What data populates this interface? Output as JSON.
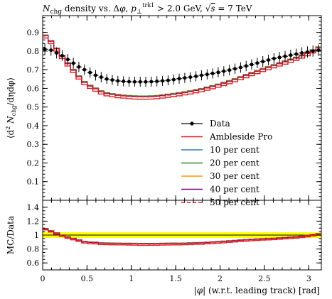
{
  "chart_data": [
    {
      "type": "line",
      "title_parts": {
        "n": "N",
        "chg": "chg",
        "density_vs": " density vs. Δ",
        "phi": "φ",
        "sep": ", ",
        "p": "p",
        "perp": "⊥",
        "trk": "trk1",
        "cut": " > 2.0 GeV, ",
        "sqrt": "√",
        "s": "s",
        "energy": " = 7 TeV"
      },
      "ylabel_parts": {
        "open": "⟨d",
        "two": "2",
        "n": " N",
        "chg": "chg",
        "rest": "/dηdφ⟩"
      },
      "ylim": [
        0,
        0.99
      ],
      "xlim": [
        0,
        3.14159
      ],
      "yticks": [
        "0.1",
        "0.2",
        "0.3",
        "0.4",
        "0.5",
        "0.6",
        "0.7",
        "0.8",
        "0.9"
      ],
      "ytick_values": [
        0.1,
        0.2,
        0.3,
        0.4,
        0.5,
        0.6,
        0.7,
        0.8,
        0.9
      ],
      "legend_position": "lower-right",
      "legend": [
        {
          "label": "Data",
          "color": "#000000",
          "style": "marker"
        },
        {
          "label": "Ambleside Pro",
          "color": "#e41a1c",
          "style": "solid"
        },
        {
          "label": "10 per cent",
          "color": "#377eb8",
          "style": "solid"
        },
        {
          "label": "20 per cent",
          "color": "#2a8a2a",
          "style": "solid"
        },
        {
          "label": "30 per cent",
          "color": "#ff9900",
          "style": "solid"
        },
        {
          "label": "40 per cent",
          "color": "#800080",
          "style": "solid"
        },
        {
          "label": "50 per cent",
          "color": "#e41a1c",
          "style": "dashed"
        }
      ],
      "x": [
        0.025,
        0.094,
        0.157,
        0.22,
        0.283,
        0.346,
        0.408,
        0.471,
        0.534,
        0.597,
        0.66,
        0.723,
        0.785,
        0.848,
        0.911,
        0.974,
        1.037,
        1.1,
        1.162,
        1.225,
        1.288,
        1.351,
        1.414,
        1.477,
        1.539,
        1.602,
        1.665,
        1.728,
        1.791,
        1.854,
        1.916,
        1.979,
        2.042,
        2.105,
        2.168,
        2.231,
        2.294,
        2.356,
        2.419,
        2.482,
        2.545,
        2.608,
        2.67,
        2.733,
        2.796,
        2.859,
        2.922,
        2.985,
        3.047,
        3.11
      ],
      "series": [
        {
          "name": "Data",
          "values": [
            0.81,
            0.805,
            0.79,
            0.775,
            0.755,
            0.735,
            0.715,
            0.7,
            0.685,
            0.67,
            0.66,
            0.65,
            0.645,
            0.64,
            0.638,
            0.636,
            0.635,
            0.635,
            0.635,
            0.636,
            0.638,
            0.64,
            0.643,
            0.647,
            0.652,
            0.656,
            0.66,
            0.665,
            0.67,
            0.675,
            0.68,
            0.686,
            0.692,
            0.698,
            0.705,
            0.712,
            0.72,
            0.728,
            0.736,
            0.744,
            0.752,
            0.76,
            0.766,
            0.772,
            0.778,
            0.784,
            0.79,
            0.795,
            0.8,
            0.805
          ],
          "errors": [
            0.03,
            0.03,
            0.03,
            0.029,
            0.029,
            0.029,
            0.028,
            0.028,
            0.028,
            0.028,
            0.028,
            0.027,
            0.027,
            0.027,
            0.027,
            0.027,
            0.027,
            0.027,
            0.027,
            0.027,
            0.027,
            0.027,
            0.027,
            0.027,
            0.027,
            0.027,
            0.027,
            0.027,
            0.027,
            0.027,
            0.027,
            0.027,
            0.027,
            0.028,
            0.028,
            0.028,
            0.028,
            0.028,
            0.028,
            0.029,
            0.029,
            0.029,
            0.029,
            0.029,
            0.029,
            0.029,
            0.03,
            0.03,
            0.03,
            0.03
          ]
        },
        {
          "name": "Ambleside Pro",
          "values": [
            0.87,
            0.84,
            0.8,
            0.76,
            0.72,
            0.685,
            0.65,
            0.62,
            0.6,
            0.585,
            0.57,
            0.56,
            0.555,
            0.55,
            0.548,
            0.545,
            0.543,
            0.542,
            0.542,
            0.543,
            0.545,
            0.548,
            0.552,
            0.556,
            0.56,
            0.565,
            0.57,
            0.576,
            0.582,
            0.59,
            0.598,
            0.606,
            0.615,
            0.625,
            0.635,
            0.646,
            0.657,
            0.668,
            0.679,
            0.69,
            0.7,
            0.71,
            0.72,
            0.73,
            0.74,
            0.75,
            0.762,
            0.775,
            0.79,
            0.805
          ]
        },
        {
          "name": "10 per cent",
          "values": [
            0.885,
            0.855,
            0.815,
            0.775,
            0.735,
            0.7,
            0.665,
            0.635,
            0.615,
            0.6,
            0.585,
            0.575,
            0.57,
            0.565,
            0.562,
            0.56,
            0.558,
            0.557,
            0.557,
            0.558,
            0.56,
            0.563,
            0.567,
            0.571,
            0.575,
            0.58,
            0.585,
            0.591,
            0.597,
            0.605,
            0.613,
            0.621,
            0.63,
            0.64,
            0.65,
            0.661,
            0.672,
            0.683,
            0.694,
            0.705,
            0.715,
            0.725,
            0.735,
            0.745,
            0.755,
            0.765,
            0.777,
            0.79,
            0.805,
            0.82
          ]
        },
        {
          "name": "20 per cent",
          "values": [
            0.886,
            0.856,
            0.816,
            0.776,
            0.737,
            0.702,
            0.667,
            0.637,
            0.617,
            0.602,
            0.587,
            0.577,
            0.572,
            0.567,
            0.564,
            0.562,
            0.56,
            0.559,
            0.559,
            0.56,
            0.562,
            0.565,
            0.569,
            0.573,
            0.577,
            0.582,
            0.587,
            0.593,
            0.599,
            0.607,
            0.615,
            0.623,
            0.632,
            0.642,
            0.652,
            0.663,
            0.674,
            0.685,
            0.696,
            0.707,
            0.717,
            0.727,
            0.737,
            0.747,
            0.757,
            0.767,
            0.779,
            0.792,
            0.807,
            0.822
          ]
        },
        {
          "name": "30 per cent",
          "values": [
            0.884,
            0.854,
            0.814,
            0.774,
            0.734,
            0.699,
            0.664,
            0.634,
            0.614,
            0.599,
            0.584,
            0.574,
            0.569,
            0.564,
            0.561,
            0.559,
            0.557,
            0.556,
            0.556,
            0.557,
            0.559,
            0.562,
            0.566,
            0.57,
            0.574,
            0.579,
            0.584,
            0.59,
            0.596,
            0.604,
            0.612,
            0.62,
            0.629,
            0.639,
            0.649,
            0.66,
            0.671,
            0.682,
            0.693,
            0.704,
            0.714,
            0.724,
            0.734,
            0.744,
            0.754,
            0.764,
            0.776,
            0.789,
            0.804,
            0.819
          ]
        },
        {
          "name": "40 per cent",
          "values": [
            0.883,
            0.853,
            0.813,
            0.773,
            0.733,
            0.698,
            0.663,
            0.633,
            0.613,
            0.598,
            0.583,
            0.573,
            0.568,
            0.563,
            0.56,
            0.558,
            0.556,
            0.555,
            0.555,
            0.556,
            0.558,
            0.561,
            0.565,
            0.569,
            0.573,
            0.578,
            0.583,
            0.589,
            0.595,
            0.603,
            0.611,
            0.619,
            0.628,
            0.638,
            0.648,
            0.659,
            0.67,
            0.681,
            0.692,
            0.703,
            0.713,
            0.723,
            0.733,
            0.743,
            0.753,
            0.763,
            0.775,
            0.788,
            0.803,
            0.818
          ]
        },
        {
          "name": "50 per cent",
          "values": [
            0.882,
            0.852,
            0.812,
            0.772,
            0.732,
            0.697,
            0.662,
            0.632,
            0.612,
            0.597,
            0.582,
            0.572,
            0.567,
            0.562,
            0.559,
            0.557,
            0.555,
            0.554,
            0.554,
            0.555,
            0.557,
            0.56,
            0.564,
            0.568,
            0.572,
            0.577,
            0.582,
            0.588,
            0.594,
            0.602,
            0.61,
            0.618,
            0.627,
            0.637,
            0.647,
            0.658,
            0.669,
            0.68,
            0.691,
            0.702,
            0.712,
            0.722,
            0.732,
            0.742,
            0.752,
            0.762,
            0.774,
            0.787,
            0.802,
            0.817
          ]
        }
      ]
    },
    {
      "type": "line",
      "ylabel": "MC/Data",
      "xlabel_parts": {
        "bar1": "|",
        "phi": "φ",
        "bar2": "|",
        "rest": " (w.r.t. leading track) [rad]"
      },
      "xlim": [
        0,
        3.14159
      ],
      "ylim": [
        0.5,
        1.5
      ],
      "xticks": [
        "0",
        "0.5",
        "1",
        "1.5",
        "2",
        "2.5",
        "3"
      ],
      "xtick_values": [
        0,
        0.5,
        1,
        1.5,
        2,
        2.5,
        3
      ],
      "yticks": [
        "0.6",
        "0.8",
        "1",
        "1.2",
        "1.4"
      ],
      "ytick_values": [
        0.6,
        0.8,
        1,
        1.2,
        1.4
      ],
      "band": {
        "low": 0.96,
        "high": 1.04,
        "color": "#ffff00"
      },
      "note": "ratio values = MC series / Data"
    }
  ],
  "colors": {
    "band": "#ffff00",
    "data": "#000000"
  }
}
